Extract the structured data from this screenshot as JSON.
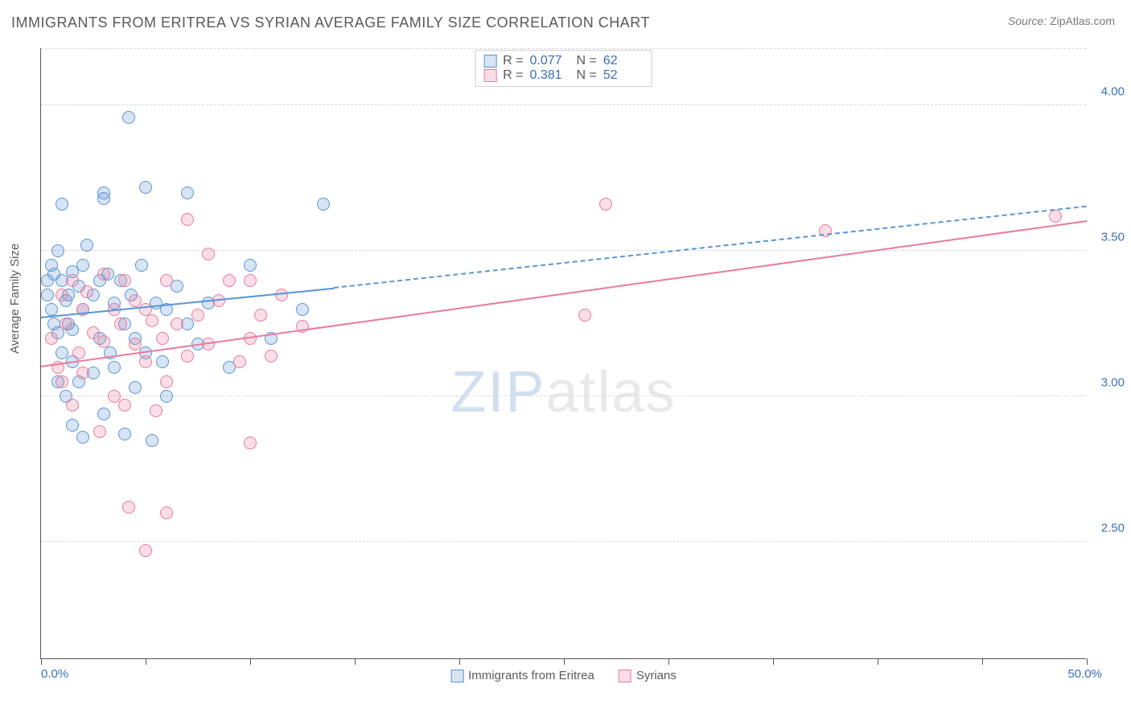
{
  "title": "IMMIGRANTS FROM ERITREA VS SYRIAN AVERAGE FAMILY SIZE CORRELATION CHART",
  "source_label": "Source:",
  "source_name": "ZipAtlas.com",
  "ylabel": "Average Family Size",
  "watermark_a": "ZIP",
  "watermark_b": "atlas",
  "chart": {
    "type": "scatter",
    "xlim": [
      0,
      50
    ],
    "ylim": [
      2.1,
      4.2
    ],
    "y_gridlines": [
      2.5,
      3.0,
      3.5,
      4.0
    ],
    "y_tick_labels": [
      "2.50",
      "3.00",
      "3.50",
      "4.00"
    ],
    "x_ticks": [
      0,
      5,
      10,
      15,
      20,
      25,
      30,
      35,
      40,
      45,
      50
    ],
    "x_min_label": "0.0%",
    "x_max_label": "50.0%",
    "background_color": "#ffffff",
    "grid_color": "#d8d8d8",
    "axis_color": "#555555",
    "tick_label_color": "#3b6fb6",
    "marker_radius": 8,
    "marker_fill_opacity": 0.25,
    "marker_stroke_width": 1.5,
    "trend_line_width": 2.5,
    "series": [
      {
        "id": "eritrea",
        "label": "Immigrants from Eritrea",
        "color": "#5a95d5",
        "fill": "rgba(90,149,213,0.25)",
        "R": "0.077",
        "N": "62",
        "trend": {
          "x0": 0,
          "y0": 3.27,
          "x_solid_end": 14,
          "y_solid_end": 3.37,
          "x1": 50,
          "y1": 3.65,
          "dashed_after_x": 14
        },
        "points": [
          [
            0.3,
            3.35
          ],
          [
            0.3,
            3.4
          ],
          [
            0.5,
            3.3
          ],
          [
            0.5,
            3.45
          ],
          [
            0.6,
            3.25
          ],
          [
            0.6,
            3.42
          ],
          [
            0.8,
            3.05
          ],
          [
            0.8,
            3.22
          ],
          [
            0.8,
            3.5
          ],
          [
            1.0,
            3.4
          ],
          [
            1.0,
            3.15
          ],
          [
            1.0,
            3.66
          ],
          [
            1.2,
            3.33
          ],
          [
            1.2,
            3.0
          ],
          [
            1.3,
            3.25
          ],
          [
            1.3,
            3.35
          ],
          [
            1.5,
            2.9
          ],
          [
            1.5,
            3.12
          ],
          [
            1.5,
            3.43
          ],
          [
            1.5,
            3.23
          ],
          [
            1.8,
            3.38
          ],
          [
            1.8,
            3.05
          ],
          [
            2.0,
            3.3
          ],
          [
            2.0,
            3.45
          ],
          [
            2.0,
            2.86
          ],
          [
            2.2,
            3.52
          ],
          [
            2.5,
            3.08
          ],
          [
            2.5,
            3.35
          ],
          [
            2.8,
            3.2
          ],
          [
            2.8,
            3.4
          ],
          [
            3.0,
            3.68
          ],
          [
            3.0,
            3.7
          ],
          [
            3.0,
            2.94
          ],
          [
            3.2,
            3.42
          ],
          [
            3.3,
            3.15
          ],
          [
            3.5,
            3.32
          ],
          [
            3.5,
            3.1
          ],
          [
            3.8,
            3.4
          ],
          [
            4.0,
            3.25
          ],
          [
            4.0,
            2.87
          ],
          [
            4.2,
            3.96
          ],
          [
            4.3,
            3.35
          ],
          [
            4.5,
            3.03
          ],
          [
            4.5,
            3.2
          ],
          [
            4.8,
            3.45
          ],
          [
            5.0,
            3.15
          ],
          [
            5.0,
            3.72
          ],
          [
            5.3,
            2.85
          ],
          [
            5.5,
            3.32
          ],
          [
            5.8,
            3.12
          ],
          [
            6.0,
            3.3
          ],
          [
            6.0,
            3.0
          ],
          [
            6.5,
            3.38
          ],
          [
            7.0,
            3.25
          ],
          [
            7.0,
            3.7
          ],
          [
            7.5,
            3.18
          ],
          [
            8.0,
            3.32
          ],
          [
            9.0,
            3.1
          ],
          [
            10.0,
            3.45
          ],
          [
            11.0,
            3.2
          ],
          [
            12.5,
            3.3
          ],
          [
            13.5,
            3.66
          ]
        ]
      },
      {
        "id": "syrians",
        "label": "Syrians",
        "color": "#e87b9c",
        "fill": "rgba(232,123,156,0.25)",
        "R": "0.381",
        "N": "52",
        "trend": {
          "x0": 0,
          "y0": 3.1,
          "x_solid_end": 50,
          "y_solid_end": 3.6,
          "x1": 50,
          "y1": 3.6,
          "dashed_after_x": 50
        },
        "points": [
          [
            0.5,
            3.2
          ],
          [
            0.8,
            3.1
          ],
          [
            1.0,
            3.35
          ],
          [
            1.0,
            3.05
          ],
          [
            1.2,
            3.25
          ],
          [
            1.5,
            3.4
          ],
          [
            1.5,
            2.97
          ],
          [
            1.8,
            3.15
          ],
          [
            2.0,
            3.3
          ],
          [
            2.0,
            3.08
          ],
          [
            2.2,
            3.36
          ],
          [
            2.5,
            3.22
          ],
          [
            2.8,
            2.88
          ],
          [
            3.0,
            3.19
          ],
          [
            3.0,
            3.42
          ],
          [
            3.5,
            3.0
          ],
          [
            3.5,
            3.3
          ],
          [
            3.8,
            3.25
          ],
          [
            4.0,
            2.97
          ],
          [
            4.0,
            3.4
          ],
          [
            4.2,
            2.62
          ],
          [
            4.5,
            3.18
          ],
          [
            4.5,
            3.33
          ],
          [
            5.0,
            2.47
          ],
          [
            5.0,
            3.12
          ],
          [
            5.0,
            3.3
          ],
          [
            5.3,
            3.26
          ],
          [
            5.5,
            2.95
          ],
          [
            5.8,
            3.2
          ],
          [
            6.0,
            3.4
          ],
          [
            6.0,
            3.05
          ],
          [
            6.5,
            3.25
          ],
          [
            7.0,
            3.61
          ],
          [
            7.0,
            3.14
          ],
          [
            7.5,
            3.28
          ],
          [
            8.0,
            3.18
          ],
          [
            8.0,
            3.49
          ],
          [
            8.5,
            3.33
          ],
          [
            9.0,
            3.4
          ],
          [
            9.5,
            3.12
          ],
          [
            10.0,
            3.2
          ],
          [
            10.0,
            2.84
          ],
          [
            10.0,
            3.4
          ],
          [
            10.5,
            3.28
          ],
          [
            11.0,
            3.14
          ],
          [
            11.5,
            3.35
          ],
          [
            12.5,
            3.24
          ],
          [
            26.0,
            3.28
          ],
          [
            27.0,
            3.66
          ],
          [
            37.5,
            3.57
          ],
          [
            48.5,
            3.62
          ],
          [
            6.0,
            2.6
          ]
        ]
      }
    ],
    "stats_box": {
      "R_label": "R =",
      "N_label": "N ="
    },
    "legend_bottom": true
  }
}
